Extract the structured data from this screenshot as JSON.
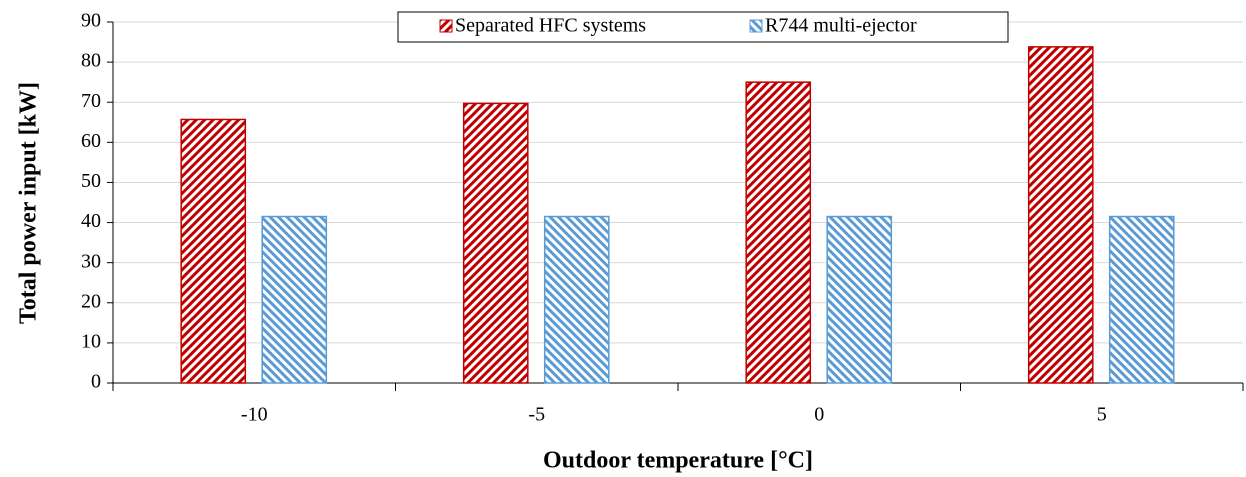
{
  "chart_data": {
    "type": "bar",
    "x_label": "Outdoor temperature [°C]",
    "y_label": "Total power input [kW]",
    "categories": [
      "-10",
      "-5",
      "0",
      "5"
    ],
    "series": [
      {
        "name": "Separated HFC systems",
        "color": "#c00000",
        "values": [
          65.7,
          69.7,
          75,
          83.8
        ]
      },
      {
        "name": "R744 multi-ejector",
        "color": "#5b9bd5",
        "values": [
          41.5,
          41.5,
          41.5,
          41.5
        ]
      }
    ],
    "ylim": [
      0,
      90
    ],
    "yticks": [
      0,
      10,
      20,
      30,
      40,
      50,
      60,
      70,
      80,
      90
    ],
    "grid": true,
    "legend": "top"
  }
}
